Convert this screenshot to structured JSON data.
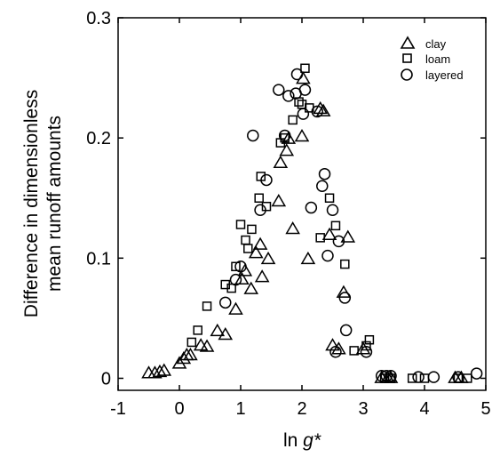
{
  "chart_data": {
    "type": "scatter",
    "title": "",
    "xlabel_prefix": "ln ",
    "xlabel_var": "g*",
    "ylabel_line1": "Difference in dimensionless",
    "ylabel_line2": "mean runoff amounts",
    "xlim": [
      -1,
      5
    ],
    "ylim": [
      -0.01,
      0.3
    ],
    "xticks": [
      -1,
      0,
      1,
      2,
      3,
      4,
      5
    ],
    "xtick_labels": [
      "-1",
      "0",
      "1",
      "2",
      "3",
      "4",
      "5"
    ],
    "yticks": [
      0,
      0.1,
      0.2,
      0.3
    ],
    "ytick_labels": [
      "0",
      "0.1",
      "0.2",
      "0.3"
    ],
    "grid": false,
    "legend_position": "top-right",
    "marker_color": "#000000",
    "series": [
      {
        "name": "clay",
        "marker": "triangle",
        "points": [
          [
            -0.5,
            0.005
          ],
          [
            -0.4,
            0.005
          ],
          [
            -0.32,
            0.006
          ],
          [
            -0.25,
            0.007
          ],
          [
            0.0,
            0.013
          ],
          [
            0.07,
            0.017
          ],
          [
            0.12,
            0.02
          ],
          [
            0.18,
            0.02
          ],
          [
            0.35,
            0.028
          ],
          [
            0.45,
            0.027
          ],
          [
            0.62,
            0.04
          ],
          [
            0.75,
            0.037
          ],
          [
            0.92,
            0.058
          ],
          [
            1.02,
            0.083
          ],
          [
            1.07,
            0.09
          ],
          [
            1.17,
            0.075
          ],
          [
            1.25,
            0.105
          ],
          [
            1.32,
            0.112
          ],
          [
            1.35,
            0.085
          ],
          [
            1.45,
            0.1
          ],
          [
            1.62,
            0.148
          ],
          [
            1.65,
            0.18
          ],
          [
            1.75,
            0.19
          ],
          [
            1.78,
            0.2
          ],
          [
            1.85,
            0.125
          ],
          [
            2.0,
            0.202
          ],
          [
            2.02,
            0.25
          ],
          [
            2.1,
            0.1
          ],
          [
            2.3,
            0.225
          ],
          [
            2.35,
            0.223
          ],
          [
            2.45,
            0.12
          ],
          [
            2.5,
            0.028
          ],
          [
            2.6,
            0.025
          ],
          [
            2.68,
            0.072
          ],
          [
            2.75,
            0.118
          ],
          [
            3.0,
            0.025
          ],
          [
            3.3,
            0.001
          ],
          [
            3.4,
            0.001
          ],
          [
            3.45,
            0.001
          ],
          [
            4.5,
            0.001
          ],
          [
            4.6,
            0.001
          ]
        ]
      },
      {
        "name": "loam",
        "marker": "square",
        "points": [
          [
            0.2,
            0.03
          ],
          [
            0.3,
            0.04
          ],
          [
            0.45,
            0.06
          ],
          [
            0.75,
            0.078
          ],
          [
            0.85,
            0.075
          ],
          [
            0.92,
            0.093
          ],
          [
            1.0,
            0.128
          ],
          [
            1.08,
            0.115
          ],
          [
            1.12,
            0.108
          ],
          [
            1.18,
            0.124
          ],
          [
            1.3,
            0.15
          ],
          [
            1.33,
            0.168
          ],
          [
            1.42,
            0.143
          ],
          [
            1.65,
            0.196
          ],
          [
            1.72,
            0.2
          ],
          [
            1.85,
            0.215
          ],
          [
            1.95,
            0.23
          ],
          [
            2.0,
            0.228
          ],
          [
            2.05,
            0.258
          ],
          [
            2.12,
            0.225
          ],
          [
            2.3,
            0.117
          ],
          [
            2.45,
            0.15
          ],
          [
            2.55,
            0.127
          ],
          [
            2.7,
            0.095
          ],
          [
            2.85,
            0.023
          ],
          [
            3.05,
            0.027
          ],
          [
            3.1,
            0.032
          ],
          [
            3.35,
            0.0
          ],
          [
            3.45,
            0.0
          ],
          [
            3.8,
            0.0
          ],
          [
            4.0,
            0.0
          ],
          [
            4.55,
            0.0
          ],
          [
            4.7,
            0.0
          ]
        ]
      },
      {
        "name": "layered",
        "marker": "circle",
        "points": [
          [
            0.75,
            0.063
          ],
          [
            0.92,
            0.082
          ],
          [
            1.0,
            0.093
          ],
          [
            1.2,
            0.202
          ],
          [
            1.32,
            0.14
          ],
          [
            1.42,
            0.165
          ],
          [
            1.62,
            0.24
          ],
          [
            1.72,
            0.202
          ],
          [
            1.78,
            0.235
          ],
          [
            1.9,
            0.237
          ],
          [
            1.92,
            0.253
          ],
          [
            2.02,
            0.22
          ],
          [
            2.05,
            0.24
          ],
          [
            2.15,
            0.142
          ],
          [
            2.25,
            0.222
          ],
          [
            2.33,
            0.16
          ],
          [
            2.37,
            0.17
          ],
          [
            2.42,
            0.102
          ],
          [
            2.5,
            0.14
          ],
          [
            2.55,
            0.022
          ],
          [
            2.6,
            0.114
          ],
          [
            2.7,
            0.067
          ],
          [
            2.72,
            0.04
          ],
          [
            3.05,
            0.022
          ],
          [
            3.3,
            0.002
          ],
          [
            3.38,
            0.002
          ],
          [
            3.45,
            0.002
          ],
          [
            3.9,
            0.001
          ],
          [
            4.15,
            0.001
          ],
          [
            4.55,
            0.001
          ],
          [
            4.85,
            0.004
          ]
        ]
      }
    ]
  }
}
